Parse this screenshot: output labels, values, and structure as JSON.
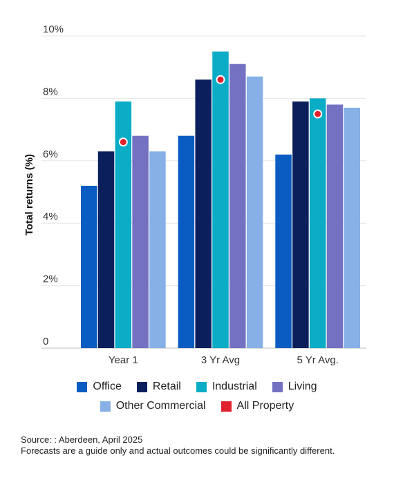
{
  "chart_data": {
    "type": "bar",
    "ylabel": "Total returns (%)",
    "y_ticks": [
      "0",
      "2%",
      "4%",
      "6%",
      "8%",
      "10%"
    ],
    "ylim": [
      0,
      10
    ],
    "grid": true,
    "categories": [
      "Year 1",
      "3 Yr Avg",
      "5 Yr Avg."
    ],
    "series": [
      {
        "name": "Office",
        "color": "#0a5cc2",
        "values": [
          5.2,
          6.8,
          6.2
        ]
      },
      {
        "name": "Retail",
        "color": "#0b1f5c",
        "values": [
          6.3,
          8.6,
          7.9
        ]
      },
      {
        "name": "Industrial",
        "color": "#0aacc6",
        "values": [
          7.9,
          9.5,
          8.0
        ]
      },
      {
        "name": "Living",
        "color": "#7471c2",
        "values": [
          6.8,
          9.1,
          7.8
        ]
      },
      {
        "name": "Other Commercial",
        "color": "#86b0e6",
        "values": [
          6.3,
          8.7,
          7.7
        ]
      }
    ],
    "markers": {
      "name": "All Property",
      "color": "#e0202c",
      "values": [
        6.6,
        8.6,
        7.5
      ]
    },
    "legend_placement": "bottom"
  },
  "source": {
    "line1": "Source: : Aberdeen, April 2025",
    "line2": "Forecasts are a guide only and actual outcomes could be significantly different."
  }
}
